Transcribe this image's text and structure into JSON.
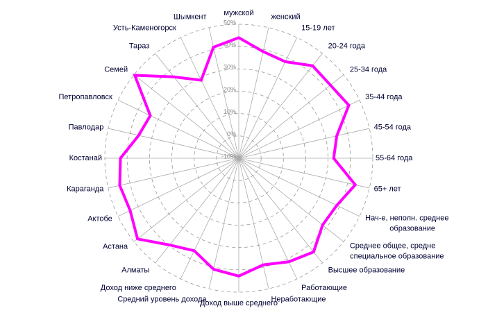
{
  "chart_data": {
    "type": "radar",
    "categories": [
      "мужской",
      "женский",
      "15-19 лет",
      "20-24 года",
      "25-34 года",
      "35-44 года",
      "45-54 года",
      "55-64 года",
      "65+ лет",
      "Нач-е, неполн. среднее  образование",
      "Среднее общее, средне специальное образование",
      "Высшее образование",
      "Работающие",
      "Неработающие",
      "Доход выше среднего",
      "Средний уровень дохода",
      "Доход ниже среднего",
      "Алматы",
      "Астана",
      "Актобе",
      "Караганда",
      "Костанай",
      "Павлодар",
      "Петропавловск",
      "Семей",
      "Тараз",
      "Усть-Каменогорск",
      "Шымкент"
    ],
    "values": [
      44,
      39,
      38,
      43,
      42.5,
      44.7,
      35,
      32.5,
      43.5,
      38.7,
      38,
      43.7,
      41.5,
      39,
      42.8,
      41,
      36,
      39.7,
      48,
      44,
      44.7,
      43,
      36,
      34,
      49.6,
      36.6,
      28.8,
      41
    ],
    "color": "#ff00ff",
    "ylim": [
      -10,
      50
    ],
    "yticks": [
      {
        "value": -10,
        "label": "-10%"
      },
      {
        "value": 0,
        "label": "0%"
      },
      {
        "value": 10,
        "label": "10%"
      },
      {
        "value": 20,
        "label": "20%"
      },
      {
        "value": 30,
        "label": "30%"
      },
      {
        "value": 40,
        "label": "40%"
      },
      {
        "value": 50,
        "label": "50%"
      }
    ],
    "grid": true
  }
}
